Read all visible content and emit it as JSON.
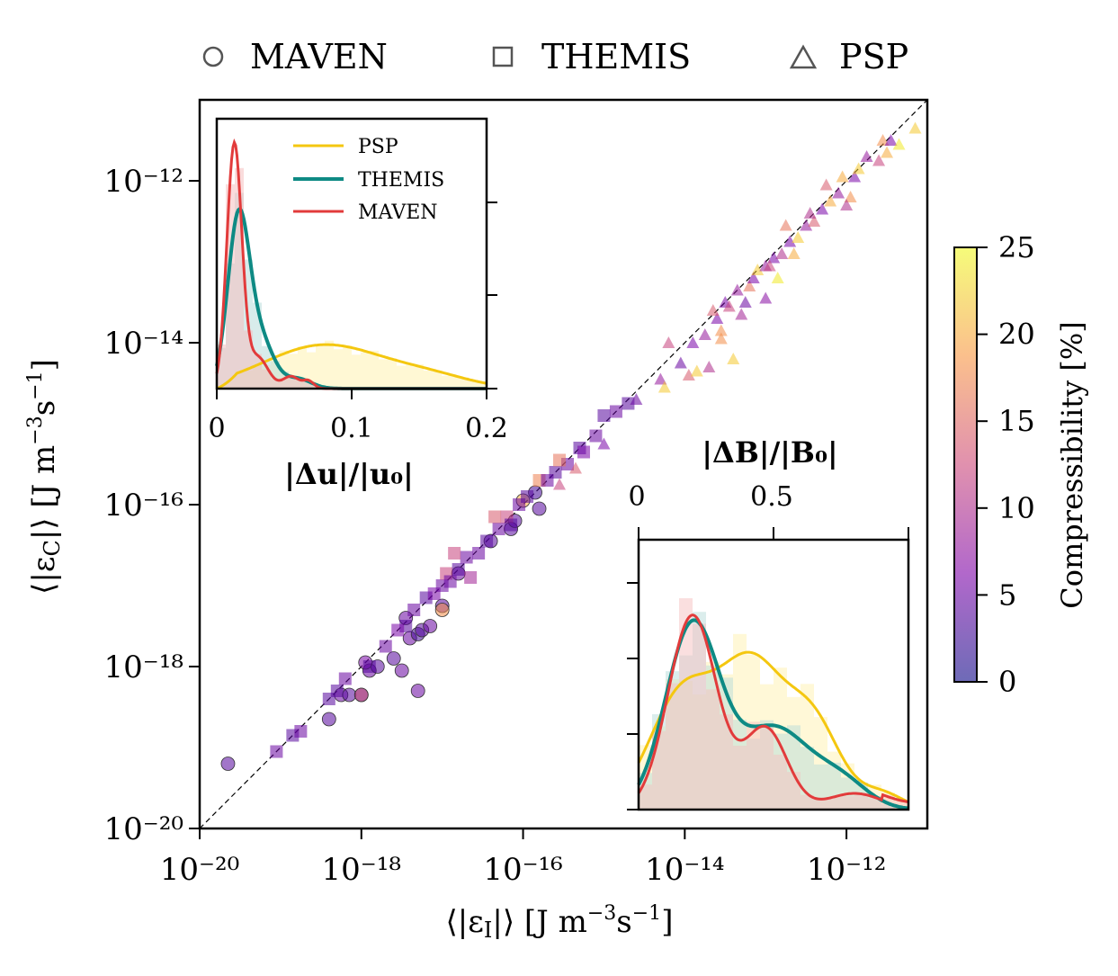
{
  "legend": {
    "maven": "MAVEN",
    "themis": "THEMIS",
    "psp": "PSP"
  },
  "colorbar": {
    "label": "Compressibility [%]",
    "ticks": [
      "0",
      "5",
      "10",
      "15",
      "20",
      "25"
    ]
  },
  "inset_u": {
    "xlabel": "|Δu|/|u₀|",
    "xticks": [
      "0",
      "0.1",
      "0.2"
    ],
    "legend": [
      "PSP",
      "THEMIS",
      "MAVEN"
    ]
  },
  "inset_b": {
    "xlabel": "|ΔB|/|B₀|",
    "xticks": [
      "0",
      "0.5"
    ]
  },
  "colors": {
    "psp": "#f4c710",
    "themis": "#0e8a84",
    "maven": "#e23b3b"
  },
  "chart_data": {
    "type": "scatter",
    "xlabel": "⟨|ε_I|⟩ [J m⁻³s⁻¹]",
    "ylabel": "⟨|ε_C|⟩ [J m⁻³s⁻¹]",
    "xscale": "log",
    "yscale": "log",
    "xlim": [
      1e-20,
      1e-11
    ],
    "ylim": [
      1e-20,
      1e-11
    ],
    "xtick_labels": [
      "10⁻²⁰",
      "10⁻¹⁸",
      "10⁻¹⁶",
      "10⁻¹⁴",
      "10⁻¹²"
    ],
    "ytick_labels": [
      "10⁻²⁰",
      "10⁻¹⁸",
      "10⁻¹⁶",
      "10⁻¹⁴",
      "10⁻¹²"
    ],
    "reference_line": "y = x (dashed)",
    "colorscale": "plasma",
    "color_range": [
      0,
      25
    ],
    "series": [
      {
        "name": "MAVEN",
        "marker": "circle",
        "points": [
          [
            -19.65,
            -19.2,
            4
          ],
          [
            -18.4,
            -18.65,
            4
          ],
          [
            -18.25,
            -18.35,
            5
          ],
          [
            -18.15,
            -18.35,
            4
          ],
          [
            -18.0,
            -18.35,
            3
          ],
          [
            -18.0,
            -18.35,
            13
          ],
          [
            -17.9,
            -18.05,
            5
          ],
          [
            -17.8,
            -18.0,
            4
          ],
          [
            -17.95,
            -17.95,
            6
          ],
          [
            -17.6,
            -17.9,
            4
          ],
          [
            -17.5,
            -18.05,
            5
          ],
          [
            -17.3,
            -18.3,
            5
          ],
          [
            -17.4,
            -17.65,
            5
          ],
          [
            -17.3,
            -17.6,
            3
          ],
          [
            -17.25,
            -17.55,
            4
          ],
          [
            -17.15,
            -17.5,
            5
          ],
          [
            -17.45,
            -17.4,
            5
          ],
          [
            -17.0,
            -17.25,
            4
          ],
          [
            -17.0,
            -17.3,
            18
          ],
          [
            -16.8,
            -16.85,
            5
          ],
          [
            -16.4,
            -16.45,
            4
          ],
          [
            -16.15,
            -16.3,
            4
          ],
          [
            -16.1,
            -16.2,
            4
          ],
          [
            -16.0,
            -15.95,
            20
          ],
          [
            -15.85,
            -15.85,
            3
          ],
          [
            -15.8,
            -16.05,
            4
          ]
        ]
      },
      {
        "name": "THEMIS",
        "marker": "square",
        "points": [
          [
            -19.05,
            -19.05,
            5
          ],
          [
            -18.85,
            -18.85,
            4
          ],
          [
            -18.75,
            -18.8,
            5
          ],
          [
            -18.4,
            -18.4,
            4
          ],
          [
            -18.3,
            -18.3,
            4
          ],
          [
            -18.2,
            -18.15,
            5
          ],
          [
            -17.9,
            -18.0,
            4
          ],
          [
            -17.7,
            -17.75,
            5
          ],
          [
            -17.45,
            -17.5,
            4
          ],
          [
            -17.35,
            -17.3,
            5
          ],
          [
            -17.2,
            -17.15,
            4
          ],
          [
            -17.1,
            -17.1,
            6
          ],
          [
            -17.0,
            -17.0,
            5
          ],
          [
            -16.95,
            -16.85,
            12
          ],
          [
            -16.9,
            -16.95,
            5
          ],
          [
            -16.8,
            -16.8,
            4
          ],
          [
            -16.7,
            -16.65,
            5
          ],
          [
            -16.65,
            -16.9,
            9
          ],
          [
            -16.55,
            -16.6,
            5
          ],
          [
            -16.45,
            -16.45,
            4
          ],
          [
            -16.3,
            -16.3,
            5
          ],
          [
            -16.2,
            -16.15,
            12
          ],
          [
            -16.15,
            -16.25,
            4
          ],
          [
            -16.05,
            -16.0,
            5
          ],
          [
            -15.95,
            -15.9,
            4
          ],
          [
            -15.8,
            -15.7,
            17
          ],
          [
            -15.7,
            -15.7,
            5
          ],
          [
            -15.6,
            -15.6,
            4
          ],
          [
            -15.45,
            -15.5,
            5
          ],
          [
            -15.3,
            -15.3,
            4
          ],
          [
            -15.1,
            -15.15,
            5
          ],
          [
            -15.0,
            -14.9,
            4
          ],
          [
            -14.85,
            -14.85,
            5
          ],
          [
            -14.7,
            -14.75,
            4
          ],
          [
            -15.25,
            -15.35,
            6
          ],
          [
            -16.35,
            -16.15,
            14
          ],
          [
            -15.55,
            -15.45,
            16
          ],
          [
            -16.85,
            -16.6,
            12
          ],
          [
            -17.55,
            -17.55,
            6
          ]
        ]
      },
      {
        "name": "PSP",
        "marker": "triangle",
        "points": [
          [
            -15.55,
            -15.75,
            12
          ],
          [
            -15.35,
            -15.55,
            14
          ],
          [
            -15.0,
            -15.25,
            6
          ],
          [
            -14.6,
            -14.7,
            5
          ],
          [
            -14.3,
            -14.45,
            8
          ],
          [
            -14.25,
            -14.55,
            22
          ],
          [
            -14.05,
            -14.25,
            5
          ],
          [
            -13.9,
            -14.0,
            6
          ],
          [
            -13.95,
            -14.4,
            14
          ],
          [
            -13.85,
            -14.35,
            22
          ],
          [
            -13.75,
            -13.9,
            8
          ],
          [
            -13.7,
            -14.3,
            10
          ],
          [
            -13.6,
            -13.7,
            6
          ],
          [
            -13.55,
            -13.85,
            18
          ],
          [
            -13.5,
            -13.5,
            6
          ],
          [
            -13.45,
            -13.55,
            12
          ],
          [
            -13.4,
            -14.2,
            22
          ],
          [
            -13.35,
            -13.35,
            8
          ],
          [
            -13.25,
            -13.5,
            5
          ],
          [
            -13.2,
            -13.3,
            16
          ],
          [
            -13.15,
            -13.2,
            6
          ],
          [
            -13.1,
            -13.1,
            22
          ],
          [
            -13.0,
            -13.05,
            8
          ],
          [
            -12.9,
            -12.95,
            6
          ],
          [
            -12.85,
            -13.2,
            24
          ],
          [
            -12.8,
            -12.9,
            10
          ],
          [
            -12.7,
            -12.75,
            6
          ],
          [
            -12.6,
            -12.7,
            22
          ],
          [
            -12.5,
            -12.55,
            8
          ],
          [
            -12.4,
            -12.5,
            14
          ],
          [
            -12.3,
            -12.35,
            6
          ],
          [
            -12.2,
            -12.25,
            20
          ],
          [
            -12.1,
            -12.15,
            8
          ],
          [
            -12.05,
            -11.95,
            20
          ],
          [
            -11.9,
            -11.95,
            6
          ],
          [
            -11.85,
            -11.85,
            22
          ],
          [
            -11.6,
            -11.75,
            12
          ],
          [
            -11.55,
            -11.5,
            18
          ],
          [
            -11.45,
            -11.5,
            6
          ],
          [
            -11.35,
            -11.55,
            24
          ],
          [
            -11.15,
            -11.35,
            22
          ],
          [
            -14.2,
            -14.0,
            12
          ],
          [
            -13.65,
            -13.6,
            14
          ],
          [
            -13.3,
            -13.65,
            9
          ],
          [
            -12.95,
            -13.05,
            12
          ],
          [
            -12.75,
            -12.55,
            16
          ],
          [
            -12.45,
            -12.4,
            10
          ],
          [
            -12.25,
            -12.05,
            14
          ],
          [
            -11.95,
            -12.2,
            18
          ],
          [
            -11.75,
            -11.7,
            8
          ],
          [
            -13.0,
            -13.45,
            7
          ],
          [
            -13.55,
            -13.95,
            18
          ],
          [
            -12.65,
            -12.9,
            20
          ],
          [
            -12.0,
            -12.3,
            10
          ],
          [
            -11.5,
            -11.65,
            20
          ]
        ]
      }
    ],
    "insets": [
      {
        "name": "|Δu|/|u₀| distribution",
        "type": "histogram+kde",
        "xlim": [
          0,
          0.2
        ],
        "series": [
          "PSP",
          "THEMIS",
          "MAVEN"
        ],
        "peaks": {
          "MAVEN": 0.013,
          "THEMIS": 0.016,
          "PSP": 0.078
        }
      },
      {
        "name": "|ΔB|/|B₀| distribution",
        "type": "histogram+kde",
        "xlim": [
          0,
          1.0
        ],
        "xticks": [
          0,
          0.5
        ],
        "series": [
          "PSP",
          "THEMIS",
          "MAVEN"
        ],
        "peaks": {
          "MAVEN": 0.2,
          "THEMIS": 0.2,
          "PSP": 0.4
        }
      }
    ]
  }
}
